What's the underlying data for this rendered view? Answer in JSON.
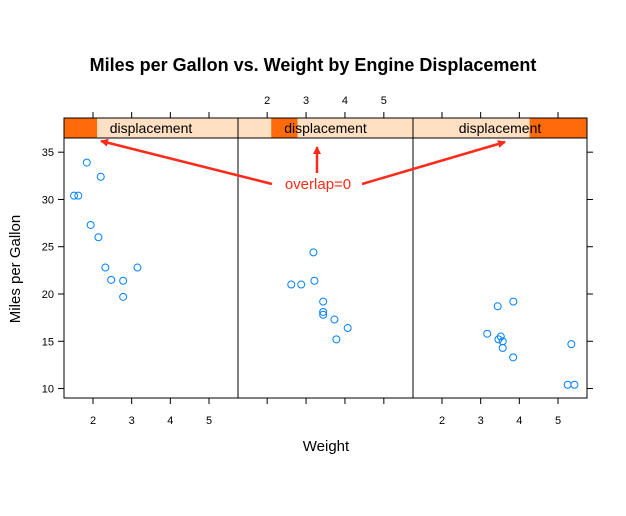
{
  "chart_data": {
    "type": "scatter",
    "title": "Miles per Gallon vs. Weight by Engine Displacement",
    "xlabel": "Weight",
    "ylabel": "Miles per Gallon",
    "xlim": [
      1.25,
      5.75
    ],
    "ylim": [
      9,
      36.5
    ],
    "x_ticks": [
      2,
      3,
      4,
      5
    ],
    "y_ticks": [
      10,
      15,
      20,
      25,
      30,
      35
    ],
    "strip_label": "displacement",
    "point_color": "#0080ff",
    "strip_bg_color": "#ffe0c2",
    "strip_shade_color": "#ff6a0a",
    "annotation": {
      "text": "overlap=0",
      "color": "#ff2a1a"
    },
    "panels": [
      {
        "strip_range": [
          0,
          0.19
        ],
        "points": [
          {
            "x": 1.51,
            "y": 30.4
          },
          {
            "x": 1.62,
            "y": 30.4
          },
          {
            "x": 1.84,
            "y": 33.9
          },
          {
            "x": 1.94,
            "y": 27.3
          },
          {
            "x": 2.14,
            "y": 26.0
          },
          {
            "x": 2.2,
            "y": 32.4
          },
          {
            "x": 2.32,
            "y": 22.8
          },
          {
            "x": 2.47,
            "y": 21.5
          },
          {
            "x": 2.78,
            "y": 21.4
          },
          {
            "x": 2.78,
            "y": 19.7
          },
          {
            "x": 3.15,
            "y": 22.8
          }
        ]
      },
      {
        "strip_range": [
          0.19,
          0.34
        ],
        "points": [
          {
            "x": 2.62,
            "y": 21.0
          },
          {
            "x": 2.875,
            "y": 21.0
          },
          {
            "x": 3.19,
            "y": 24.4
          },
          {
            "x": 3.215,
            "y": 21.4
          },
          {
            "x": 3.44,
            "y": 19.2
          },
          {
            "x": 3.44,
            "y": 17.8
          },
          {
            "x": 3.44,
            "y": 18.1
          },
          {
            "x": 3.73,
            "y": 17.3
          },
          {
            "x": 3.78,
            "y": 15.2
          },
          {
            "x": 4.07,
            "y": 16.4
          }
        ]
      },
      {
        "strip_range": [
          0.67,
          1.0
        ],
        "points": [
          {
            "x": 3.17,
            "y": 15.8
          },
          {
            "x": 3.44,
            "y": 18.7
          },
          {
            "x": 3.46,
            "y": 15.2
          },
          {
            "x": 3.52,
            "y": 15.5
          },
          {
            "x": 3.57,
            "y": 14.3
          },
          {
            "x": 3.57,
            "y": 15.0
          },
          {
            "x": 3.84,
            "y": 13.3
          },
          {
            "x": 3.845,
            "y": 19.2
          },
          {
            "x": 5.25,
            "y": 10.4
          },
          {
            "x": 5.345,
            "y": 14.7
          },
          {
            "x": 5.424,
            "y": 10.4
          }
        ]
      }
    ]
  }
}
